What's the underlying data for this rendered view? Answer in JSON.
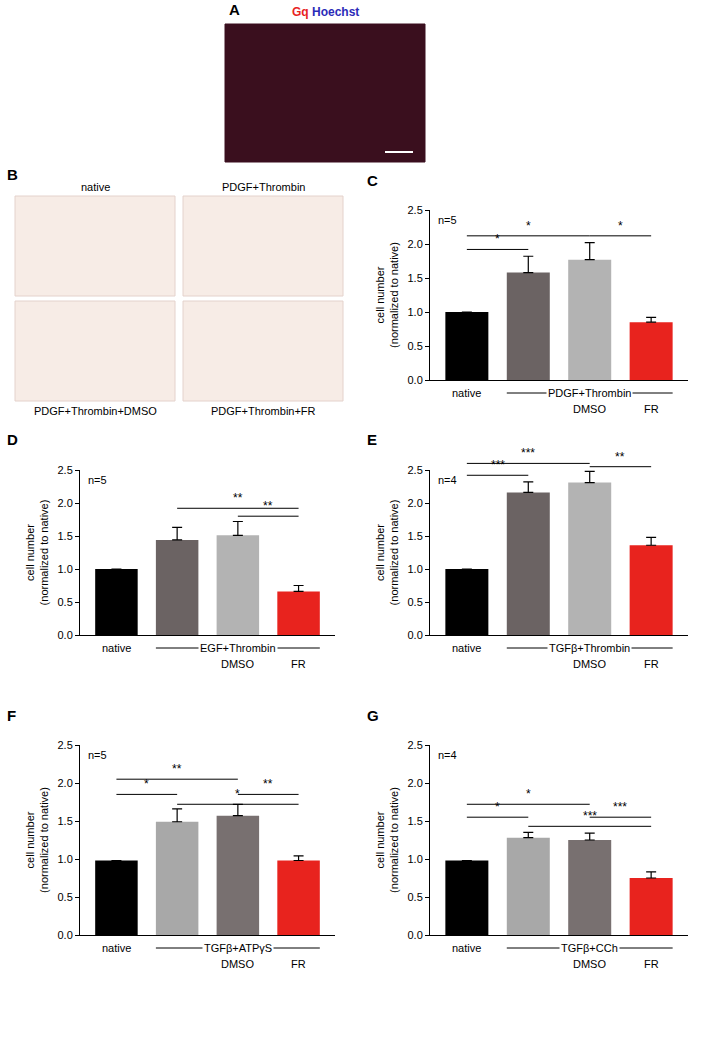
{
  "panels": [
    {
      "letter": "A",
      "type": "image",
      "title": [
        {
          "text": "Gq",
          "color": "#e8231e"
        },
        {
          "text": "Hoechst",
          "color": "#2b2bb8"
        }
      ]
    },
    {
      "letter": "B",
      "type": "image_grid",
      "images": [
        "native",
        "PDGF+Thrombin",
        "PDGF+Thrombin+DMSO",
        "PDGF+Thrombin+FR"
      ]
    }
  ],
  "chart_data": [
    {
      "letter": "C",
      "type": "bar",
      "n_label": "n=5",
      "ylabel": [
        "cell number",
        "(normalized to native)"
      ],
      "categories": [
        "native",
        null,
        "DMSO",
        "FR"
      ],
      "group": {
        "label": "PDGF+Thrombin",
        "from": 1,
        "to": 3
      },
      "values": [
        1.0,
        1.58,
        1.77,
        0.85
      ],
      "errors": [
        null,
        0.24,
        0.25,
        0.07
      ],
      "colors": [
        "#000000",
        "#6b6363",
        "#b3b3b3",
        "#e8231e"
      ],
      "ylim": [
        0,
        2.5
      ],
      "yticks": [
        {
          "value": 0,
          "label": "0.0"
        },
        {
          "value": 0.5,
          "label": "0.5"
        },
        {
          "value": 1,
          "label": "1.0"
        },
        {
          "value": 1.5,
          "label": "1.5"
        },
        {
          "value": 2,
          "label": "2.0"
        },
        {
          "value": 2.5,
          "label": "2.5"
        }
      ],
      "significance": [
        {
          "from": 0,
          "to": 1,
          "y": 1.92,
          "label": "*"
        },
        {
          "from": 0,
          "to": 2,
          "y": 2.12,
          "label": "*"
        },
        {
          "from": 2,
          "to": 3,
          "y": 2.12,
          "label": "*"
        }
      ]
    },
    {
      "letter": "D",
      "type": "bar",
      "n_label": "n=5",
      "ylabel": [
        "cell number",
        "(normalized to native)"
      ],
      "categories": [
        "native",
        null,
        "DMSO",
        "FR"
      ],
      "group": {
        "label": "EGF+Thrombin",
        "from": 1,
        "to": 3
      },
      "values": [
        1.0,
        1.44,
        1.51,
        0.66
      ],
      "errors": [
        null,
        0.19,
        0.21,
        0.09
      ],
      "colors": [
        "#000000",
        "#6b6363",
        "#b3b3b3",
        "#e8231e"
      ],
      "ylim": [
        0,
        2.5
      ],
      "yticks": [
        {
          "value": 0,
          "label": "0.0"
        },
        {
          "value": 0.5,
          "label": "0.5"
        },
        {
          "value": 1,
          "label": "1.0"
        },
        {
          "value": 1.5,
          "label": "1.5"
        },
        {
          "value": 2,
          "label": "2.0"
        },
        {
          "value": 2.5,
          "label": "2.5"
        }
      ],
      "significance": [
        {
          "from": 1,
          "to": 3,
          "y": 1.92,
          "label": "**"
        },
        {
          "from": 2,
          "to": 3,
          "y": 1.8,
          "label": "**"
        }
      ]
    },
    {
      "letter": "E",
      "type": "bar",
      "n_label": "n=4",
      "ylabel": [
        "cell number",
        "(normalized to native)"
      ],
      "categories": [
        "native",
        null,
        "DMSO",
        "FR"
      ],
      "group": {
        "label": "TGFβ+Thrombin",
        "from": 1,
        "to": 3
      },
      "values": [
        1.0,
        2.16,
        2.31,
        1.36
      ],
      "errors": [
        null,
        0.16,
        0.17,
        0.12
      ],
      "colors": [
        "#000000",
        "#6b6363",
        "#b3b3b3",
        "#e8231e"
      ],
      "ylim": [
        0,
        2.5
      ],
      "yticks": [
        {
          "value": 0,
          "label": "0.0"
        },
        {
          "value": 0.5,
          "label": "0.5"
        },
        {
          "value": 1,
          "label": "1.0"
        },
        {
          "value": 1.5,
          "label": "1.5"
        },
        {
          "value": 2,
          "label": "2.0"
        },
        {
          "value": 2.5,
          "label": "2.5"
        }
      ],
      "significance": [
        {
          "from": 0,
          "to": 1,
          "y": 2.42,
          "label": "***"
        },
        {
          "from": 0,
          "to": 2,
          "y": 2.6,
          "label": "***"
        },
        {
          "from": 2,
          "to": 3,
          "y": 2.55,
          "label": "**"
        }
      ]
    },
    {
      "letter": "F",
      "type": "bar",
      "n_label": "n=5",
      "ylabel": [
        "cell number",
        "(normalized to native)"
      ],
      "categories": [
        "native",
        null,
        "DMSO",
        "FR"
      ],
      "group": {
        "label": "TGFβ+ATPγS",
        "from": 1,
        "to": 3
      },
      "values": [
        0.98,
        1.49,
        1.57,
        0.98
      ],
      "errors": [
        null,
        0.17,
        0.15,
        0.06
      ],
      "colors": [
        "#000000",
        "#a8a8a8",
        "#787070",
        "#e8231e"
      ],
      "ylim": [
        0,
        2.5
      ],
      "yticks": [
        {
          "value": 0,
          "label": "0.0"
        },
        {
          "value": 0.5,
          "label": "0.5"
        },
        {
          "value": 1,
          "label": "1.0"
        },
        {
          "value": 1.5,
          "label": "1.5"
        },
        {
          "value": 2,
          "label": "2.0"
        },
        {
          "value": 2.5,
          "label": "2.5"
        }
      ],
      "significance": [
        {
          "from": 0,
          "to": 1,
          "y": 1.85,
          "label": "*"
        },
        {
          "from": 0,
          "to": 2,
          "y": 2.05,
          "label": "**"
        },
        {
          "from": 2,
          "to": 3,
          "y": 1.85,
          "label": "**"
        },
        {
          "from": 1,
          "to": 3,
          "y": 1.72,
          "label": "*"
        }
      ]
    },
    {
      "letter": "G",
      "type": "bar",
      "n_label": "n=4",
      "ylabel": [
        "cell number",
        "(normalized to native)"
      ],
      "categories": [
        "native",
        null,
        "DMSO",
        "FR"
      ],
      "group": {
        "label": "TGFβ+CCh",
        "from": 1,
        "to": 3
      },
      "values": [
        0.98,
        1.28,
        1.25,
        0.75
      ],
      "errors": [
        null,
        0.07,
        0.09,
        0.08
      ],
      "colors": [
        "#000000",
        "#a8a8a8",
        "#787070",
        "#e8231e"
      ],
      "ylim": [
        0,
        2.5
      ],
      "yticks": [
        {
          "value": 0,
          "label": "0.0"
        },
        {
          "value": 0.5,
          "label": "0.5"
        },
        {
          "value": 1,
          "label": "1.0"
        },
        {
          "value": 1.5,
          "label": "1.5"
        },
        {
          "value": 2,
          "label": "2.0"
        },
        {
          "value": 2.5,
          "label": "2.5"
        }
      ],
      "significance": [
        {
          "from": 0,
          "to": 1,
          "y": 1.55,
          "label": "*"
        },
        {
          "from": 0,
          "to": 2,
          "y": 1.72,
          "label": "*"
        },
        {
          "from": 2,
          "to": 3,
          "y": 1.55,
          "label": "***"
        },
        {
          "from": 1,
          "to": 3,
          "y": 1.43,
          "label": "***"
        }
      ]
    }
  ]
}
